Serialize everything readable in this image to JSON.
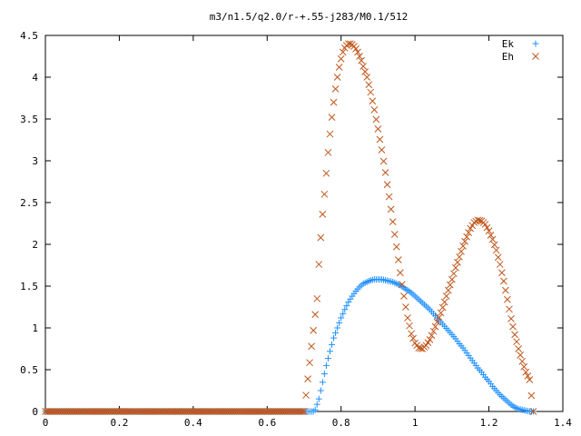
{
  "chart_data": {
    "type": "scatter",
    "title": "m3/n1.5/q2.0/r-+.55-j283/M0.1/512",
    "xlabel": "",
    "ylabel": "",
    "xlim": [
      0,
      1.4
    ],
    "ylim": [
      0,
      4.5
    ],
    "x_ticks": [
      "0",
      "0.2",
      "0.4",
      "0.6",
      "0.8",
      "1",
      "1.2",
      "1.4"
    ],
    "y_ticks": [
      "0",
      "0.5",
      "1",
      "1.5",
      "2",
      "2.5",
      "3",
      "3.5",
      "4",
      "4.5"
    ],
    "grid": false,
    "legend": "top-right",
    "series": [
      {
        "name": "Ek",
        "marker": "plus",
        "color": "#1e90ff",
        "x": [
          0.0,
          0.05,
          0.1,
          0.15,
          0.2,
          0.25,
          0.3,
          0.35,
          0.4,
          0.45,
          0.5,
          0.55,
          0.6,
          0.65,
          0.7,
          0.725,
          0.73,
          0.74,
          0.75,
          0.76,
          0.77,
          0.78,
          0.79,
          0.8,
          0.81,
          0.82,
          0.83,
          0.84,
          0.85,
          0.86,
          0.87,
          0.88,
          0.89,
          0.9,
          0.91,
          0.92,
          0.93,
          0.94,
          0.95,
          0.96,
          0.97,
          0.98,
          0.99,
          1.0,
          1.01,
          1.02,
          1.03,
          1.04,
          1.05,
          1.06,
          1.07,
          1.08,
          1.09,
          1.1,
          1.11,
          1.12,
          1.13,
          1.14,
          1.15,
          1.16,
          1.17,
          1.18,
          1.19,
          1.2,
          1.21,
          1.22,
          1.23,
          1.24,
          1.25,
          1.26,
          1.27,
          1.28,
          1.29,
          1.3,
          1.31,
          1.32
        ],
        "y": [
          0,
          0,
          0,
          0,
          0,
          0,
          0,
          0,
          0,
          0,
          0,
          0,
          0,
          0,
          0,
          0,
          0.02,
          0.15,
          0.35,
          0.55,
          0.72,
          0.88,
          1.0,
          1.12,
          1.22,
          1.31,
          1.38,
          1.44,
          1.49,
          1.53,
          1.55,
          1.57,
          1.58,
          1.58,
          1.58,
          1.57,
          1.56,
          1.55,
          1.53,
          1.51,
          1.48,
          1.45,
          1.42,
          1.38,
          1.34,
          1.3,
          1.26,
          1.22,
          1.17,
          1.12,
          1.07,
          1.02,
          0.97,
          0.92,
          0.87,
          0.81,
          0.76,
          0.7,
          0.64,
          0.58,
          0.52,
          0.47,
          0.41,
          0.36,
          0.3,
          0.25,
          0.2,
          0.16,
          0.12,
          0.08,
          0.05,
          0.03,
          0.02,
          0.01,
          0.0,
          0.0
        ]
      },
      {
        "name": "Eh",
        "marker": "cross",
        "color": "#c0561c",
        "x": [
          0.0,
          0.05,
          0.1,
          0.15,
          0.2,
          0.25,
          0.3,
          0.35,
          0.4,
          0.45,
          0.5,
          0.55,
          0.6,
          0.65,
          0.7,
          0.72,
          0.735,
          0.74,
          0.745,
          0.75,
          0.755,
          0.76,
          0.765,
          0.77,
          0.775,
          0.78,
          0.785,
          0.79,
          0.795,
          0.8,
          0.805,
          0.81,
          0.815,
          0.82,
          0.825,
          0.83,
          0.835,
          0.84,
          0.845,
          0.85,
          0.855,
          0.86,
          0.87,
          0.88,
          0.89,
          0.9,
          0.91,
          0.92,
          0.93,
          0.94,
          0.95,
          0.96,
          0.97,
          0.98,
          0.99,
          1.0,
          1.01,
          1.02,
          1.03,
          1.04,
          1.05,
          1.06,
          1.07,
          1.08,
          1.09,
          1.1,
          1.11,
          1.12,
          1.13,
          1.14,
          1.15,
          1.16,
          1.17,
          1.18,
          1.19,
          1.2,
          1.21,
          1.22,
          1.23,
          1.24,
          1.25,
          1.26,
          1.27,
          1.28,
          1.29,
          1.3,
          1.31,
          1.32
        ],
        "y": [
          0,
          0,
          0,
          0,
          0,
          0,
          0,
          0,
          0,
          0,
          0,
          0,
          0,
          0,
          0,
          0.78,
          1.35,
          1.76,
          2.08,
          2.36,
          2.6,
          2.85,
          3.1,
          3.32,
          3.52,
          3.7,
          3.86,
          4.0,
          4.12,
          4.22,
          4.3,
          4.35,
          4.38,
          4.4,
          4.4,
          4.39,
          4.37,
          4.34,
          4.3,
          4.25,
          4.2,
          4.13,
          4.0,
          3.82,
          3.61,
          3.38,
          3.13,
          2.86,
          2.57,
          2.27,
          1.97,
          1.66,
          1.38,
          1.12,
          0.93,
          0.82,
          0.76,
          0.75,
          0.79,
          0.86,
          0.96,
          1.07,
          1.18,
          1.31,
          1.45,
          1.58,
          1.72,
          1.85,
          1.98,
          2.09,
          2.19,
          2.26,
          2.29,
          2.28,
          2.24,
          2.16,
          2.06,
          1.93,
          1.76,
          1.56,
          1.34,
          1.11,
          0.92,
          0.75,
          0.6,
          0.47,
          0.38,
          0.0
        ]
      }
    ]
  }
}
